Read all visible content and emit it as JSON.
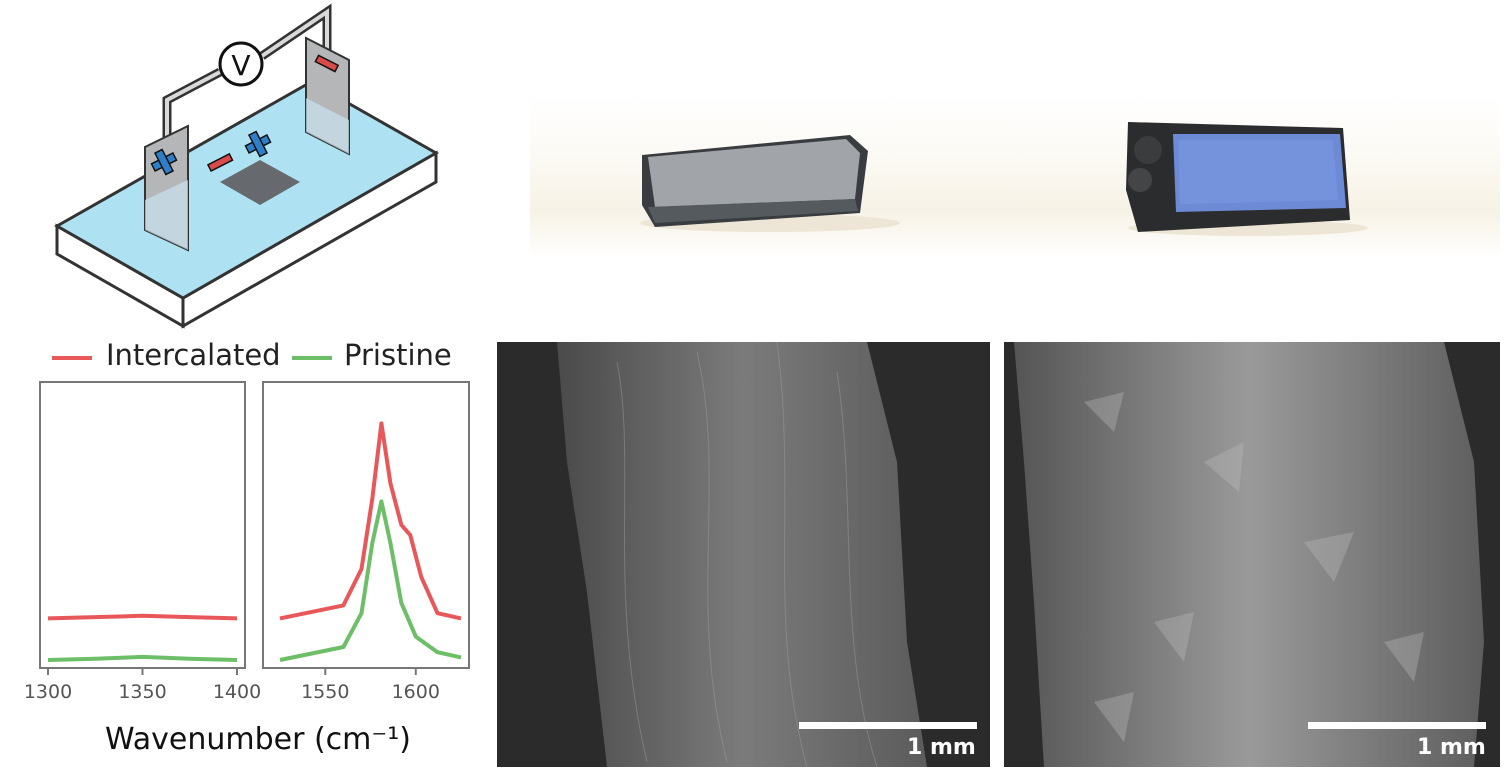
{
  "schematic": {
    "voltmeter_label": "V"
  },
  "photos": {
    "pristine_sample": "grey graphite block photo",
    "intercalated_sample": "blue-faced expanded block photo"
  },
  "sem": {
    "left_scale_label": "1 mm",
    "right_scale_label": "1 mm"
  },
  "chart_data": {
    "type": "line",
    "legend": [
      "Intercalated",
      "Pristine"
    ],
    "colors": {
      "Intercalated": "#e8575a",
      "Pristine": "#6dbf67"
    },
    "xlabel": "Wavenumber (cm⁻¹)",
    "panels": [
      {
        "xlim": [
          1300,
          1400
        ],
        "ticks": [
          1300,
          1350,
          1400
        ],
        "series": [
          {
            "name": "Intercalated",
            "x": [
              1300,
              1325,
              1350,
              1375,
              1400
            ],
            "y": [
              0.16,
              0.165,
              0.17,
              0.165,
              0.16
            ]
          },
          {
            "name": "Pristine",
            "x": [
              1300,
              1325,
              1350,
              1375,
              1400
            ],
            "y": [
              0.0,
              0.005,
              0.012,
              0.005,
              0.0
            ]
          }
        ]
      },
      {
        "xlim": [
          1520,
          1625
        ],
        "ticks": [
          1550,
          1600
        ],
        "series": [
          {
            "name": "Intercalated",
            "x": [
              1525,
              1560,
              1570,
              1576,
              1581,
              1586,
              1592,
              1597,
              1603,
              1612,
              1625
            ],
            "y": [
              0.16,
              0.21,
              0.35,
              0.62,
              0.91,
              0.68,
              0.52,
              0.48,
              0.32,
              0.18,
              0.16
            ]
          },
          {
            "name": "Pristine",
            "x": [
              1525,
              1560,
              1570,
              1576,
              1581,
              1586,
              1592,
              1600,
              1612,
              1625
            ],
            "y": [
              0.0,
              0.05,
              0.18,
              0.45,
              0.61,
              0.45,
              0.22,
              0.09,
              0.03,
              0.01
            ]
          }
        ]
      }
    ]
  }
}
